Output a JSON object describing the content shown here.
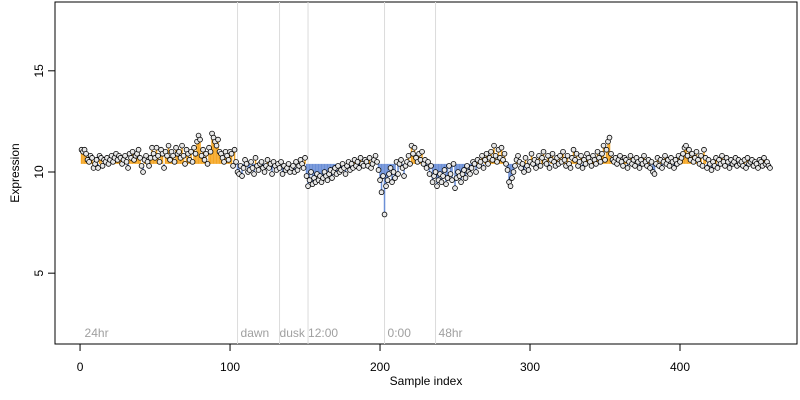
{
  "chart_data": {
    "type": "stem",
    "xlabel": "Sample index",
    "ylabel": "Expression",
    "xlim": [
      -16.7,
      478
    ],
    "ylim": [
      1.5,
      18.4
    ],
    "xticks": [
      0,
      100,
      200,
      300,
      400
    ],
    "yticks": [
      5,
      10,
      15
    ],
    "baseline": 10.4,
    "above_color": "#f5a623",
    "below_color": "#6b8fd6",
    "point_fill": "#e8e8e8",
    "vlines": [
      105,
      133,
      152,
      203,
      237
    ],
    "annotations": [
      {
        "x": 3,
        "text": "24hr"
      },
      {
        "x": 107,
        "text": "dawn"
      },
      {
        "x": 133,
        "text": "dusk"
      },
      {
        "x": 152,
        "text": "12:00"
      },
      {
        "x": 205,
        "text": "0:00"
      },
      {
        "x": 239,
        "text": "48hr"
      }
    ],
    "x": [
      1,
      2,
      3,
      4,
      5,
      6,
      7,
      8,
      9,
      10,
      11,
      12,
      13,
      14,
      15,
      16,
      17,
      18,
      19,
      20,
      21,
      22,
      23,
      24,
      25,
      26,
      27,
      28,
      29,
      30,
      31,
      32,
      33,
      34,
      35,
      36,
      37,
      38,
      39,
      40,
      41,
      42,
      43,
      44,
      45,
      46,
      47,
      48,
      49,
      50,
      51,
      52,
      53,
      54,
      55,
      56,
      57,
      58,
      59,
      60,
      61,
      62,
      63,
      64,
      65,
      66,
      67,
      68,
      69,
      70,
      71,
      72,
      73,
      74,
      75,
      76,
      77,
      78,
      79,
      80,
      81,
      82,
      83,
      84,
      85,
      86,
      87,
      88,
      89,
      90,
      91,
      92,
      93,
      94,
      95,
      96,
      97,
      98,
      99,
      100,
      101,
      102,
      103,
      104,
      105,
      106,
      107,
      108,
      109,
      110,
      111,
      112,
      113,
      114,
      115,
      116,
      117,
      118,
      119,
      120,
      121,
      122,
      123,
      124,
      125,
      126,
      127,
      128,
      129,
      130,
      131,
      132,
      133,
      134,
      135,
      136,
      137,
      138,
      139,
      140,
      141,
      142,
      143,
      144,
      145,
      146,
      147,
      148,
      149,
      150,
      151,
      152,
      153,
      154,
      155,
      156,
      157,
      158,
      159,
      160,
      161,
      162,
      163,
      164,
      165,
      166,
      167,
      168,
      169,
      170,
      171,
      172,
      173,
      174,
      175,
      176,
      177,
      178,
      179,
      180,
      181,
      182,
      183,
      184,
      185,
      186,
      187,
      188,
      189,
      190,
      191,
      192,
      193,
      194,
      195,
      196,
      197,
      198,
      199,
      200,
      201,
      202,
      203,
      204,
      205,
      206,
      207,
      208,
      209,
      210,
      211,
      212,
      213,
      214,
      215,
      216,
      217,
      218,
      219,
      220,
      221,
      222,
      223,
      224,
      225,
      226,
      227,
      228,
      229,
      230,
      231,
      232,
      233,
      234,
      235,
      236,
      237,
      238,
      239,
      240,
      241,
      242,
      243,
      244,
      245,
      246,
      247,
      248,
      249,
      250,
      251,
      252,
      253,
      254,
      255,
      256,
      257,
      258,
      259,
      260,
      261,
      262,
      263,
      264,
      265,
      266,
      267,
      268,
      269,
      270,
      271,
      272,
      273,
      274,
      275,
      276,
      277,
      278,
      279,
      280,
      281,
      282,
      283,
      284,
      285,
      286,
      287,
      288,
      289,
      290,
      291,
      292,
      293,
      294,
      295,
      296,
      297,
      298,
      299,
      300,
      301,
      302,
      303,
      304,
      305,
      306,
      307,
      308,
      309,
      310,
      311,
      312,
      313,
      314,
      315,
      316,
      317,
      318,
      319,
      320,
      321,
      322,
      323,
      324,
      325,
      326,
      327,
      328,
      329,
      330,
      331,
      332,
      333,
      334,
      335,
      336,
      337,
      338,
      339,
      340,
      341,
      342,
      343,
      344,
      345,
      346,
      347,
      348,
      349,
      350,
      351,
      352,
      353,
      354,
      355,
      356,
      357,
      358,
      359,
      360,
      361,
      362,
      363,
      364,
      365,
      366,
      367,
      368,
      369,
      370,
      371,
      372,
      373,
      374,
      375,
      376,
      377,
      378,
      379,
      380,
      381,
      382,
      383,
      384,
      385,
      386,
      387,
      388,
      389,
      390,
      391,
      392,
      393,
      394,
      395,
      396,
      397,
      398,
      399,
      400,
      401,
      402,
      403,
      404,
      405,
      406,
      407,
      408,
      409,
      410,
      411,
      412,
      413,
      414,
      415,
      416,
      417,
      418,
      419,
      420,
      421,
      422,
      423,
      424,
      425,
      426,
      427,
      428,
      429,
      430,
      431,
      432,
      433,
      434,
      435,
      436,
      437,
      438,
      439,
      440,
      441,
      442,
      443,
      444,
      445,
      446,
      447,
      448,
      449,
      450,
      451,
      452,
      453,
      454,
      455,
      456,
      457,
      458,
      459,
      460
    ],
    "values": [
      11.1,
      11.0,
      11.1,
      10.9,
      10.6,
      10.5,
      10.8,
      10.7,
      10.2,
      10.4,
      10.6,
      10.2,
      10.8,
      10.7,
      10.3,
      10.6,
      10.5,
      10.7,
      10.4,
      10.6,
      10.8,
      10.5,
      10.7,
      10.9,
      10.6,
      10.8,
      10.7,
      10.4,
      10.6,
      10.8,
      10.5,
      10.2,
      10.9,
      10.7,
      11.0,
      10.6,
      10.8,
      10.9,
      11.1,
      10.7,
      10.3,
      10.0,
      10.6,
      10.8,
      10.5,
      10.3,
      10.7,
      11.2,
      10.9,
      10.7,
      11.2,
      10.8,
      10.5,
      11.1,
      10.9,
      10.2,
      11.0,
      10.8,
      11.3,
      10.6,
      11.0,
      10.8,
      10.5,
      11.2,
      10.9,
      11.0,
      10.7,
      11.3,
      10.8,
      10.4,
      11.1,
      10.9,
      10.6,
      11.0,
      10.5,
      11.2,
      10.9,
      11.5,
      11.8,
      11.6,
      10.8,
      11.1,
      10.6,
      10.9,
      10.4,
      11.2,
      11.0,
      11.9,
      11.7,
      11.5,
      11.3,
      11.6,
      11.0,
      10.9,
      10.7,
      10.5,
      11.0,
      10.8,
      10.6,
      11.0,
      10.9,
      10.3,
      11.1,
      10.5,
      10.0,
      9.9,
      10.3,
      9.8,
      10.2,
      10.6,
      10.4,
      10.0,
      10.1,
      10.5,
      10.2,
      9.9,
      10.7,
      10.3,
      10.1,
      10.4,
      10.5,
      10.2,
      10.0,
      10.3,
      10.6,
      10.2,
      10.4,
      9.9,
      10.5,
      10.3,
      10.1,
      10.4,
      10.2,
      10.5,
      9.9,
      10.3,
      10.1,
      10.2,
      10.4,
      10.0,
      10.2,
      10.3,
      10.0,
      10.5,
      10.1,
      10.3,
      10.6,
      10.4,
      10.2,
      10.7,
      9.8,
      9.3,
      9.6,
      10.0,
      9.4,
      9.7,
      9.5,
      9.9,
      9.6,
      9.8,
      9.5,
      9.7,
      10.0,
      9.8,
      9.6,
      9.9,
      10.1,
      9.7,
      10.0,
      10.2,
      9.9,
      10.3,
      10.0,
      10.1,
      10.4,
      10.2,
      9.9,
      10.3,
      10.5,
      10.1,
      10.4,
      10.2,
      10.6,
      10.3,
      10.5,
      10.2,
      10.7,
      10.4,
      10.3,
      10.6,
      10.5,
      10.3,
      10.7,
      10.2,
      10.4,
      10.6,
      10.8,
      10.5,
      10.1,
      9.6,
      9.0,
      9.8,
      7.9,
      9.3,
      9.6,
      9.9,
      10.2,
      9.5,
      10.0,
      9.7,
      10.5,
      9.9,
      10.4,
      10.6,
      10.2,
      9.8,
      10.3,
      10.5,
      10.8,
      10.4,
      11.3,
      10.9,
      11.2,
      10.7,
      10.5,
      10.9,
      10.6,
      11.0,
      10.4,
      10.6,
      10.2,
      10.5,
      9.9,
      10.3,
      9.5,
      9.8,
      10.0,
      9.3,
      9.6,
      9.9,
      9.5,
      9.8,
      10.1,
      9.4,
      9.7,
      10.3,
      9.9,
      9.6,
      10.4,
      9.2,
      9.7,
      10.0,
      9.8,
      9.5,
      9.9,
      10.1,
      9.7,
      10.3,
      10.0,
      9.9,
      10.2,
      10.5,
      10.4,
      10.0,
      10.6,
      10.3,
      10.5,
      10.8,
      10.2,
      10.6,
      10.9,
      10.4,
      10.7,
      11.0,
      10.6,
      11.3,
      10.8,
      10.5,
      11.1,
      10.7,
      11.2,
      10.6,
      10.9,
      10.4,
      10.1,
      9.5,
      9.3,
      9.7,
      10.0,
      10.3,
      10.6,
      10.8,
      10.5,
      10.2,
      10.4,
      10.0,
      10.7,
      10.3,
      10.1,
      10.5,
      10.9,
      10.4,
      10.6,
      10.2,
      10.5,
      10.8,
      10.3,
      10.7,
      11.0,
      10.5,
      10.4,
      10.8,
      10.2,
      10.6,
      10.9,
      10.5,
      10.3,
      10.7,
      10.4,
      10.8,
      10.5,
      11.0,
      10.6,
      10.3,
      10.8,
      10.4,
      10.2,
      10.7,
      11.1,
      10.6,
      10.9,
      10.3,
      10.5,
      10.8,
      10.2,
      10.6,
      10.4,
      10.9,
      10.7,
      10.5,
      10.3,
      10.8,
      10.6,
      10.4,
      11.0,
      10.7,
      10.5,
      10.9,
      11.3,
      10.6,
      11.1,
      11.5,
      11.7,
      10.9,
      10.6,
      10.5,
      10.7,
      10.4,
      10.6,
      10.8,
      10.5,
      10.3,
      10.7,
      10.6,
      10.2,
      10.5,
      10.8,
      10.4,
      10.6,
      10.3,
      10.7,
      10.5,
      10.2,
      10.6,
      10.4,
      10.8,
      10.5,
      10.3,
      10.6,
      10.2,
      10.5,
      10.0,
      9.9,
      10.4,
      10.7,
      10.3,
      10.6,
      10.2,
      10.5,
      10.8,
      10.4,
      10.6,
      10.3,
      10.7,
      10.5,
      10.2,
      10.6,
      10.4,
      10.8,
      10.5,
      10.7,
      10.9,
      11.2,
      11.3,
      10.8,
      11.1,
      10.6,
      10.9,
      10.5,
      10.7,
      11.0,
      10.6,
      10.4,
      10.8,
      10.3,
      11.1,
      10.7,
      10.2,
      10.6,
      10.4,
      10.1,
      10.5,
      10.3,
      10.7,
      10.2,
      10.6,
      10.4,
      10.8,
      10.5,
      10.3,
      10.7,
      10.5,
      10.2,
      10.6,
      10.4,
      10.5,
      10.7,
      10.3,
      10.6,
      10.4,
      10.5,
      10.3,
      10.6,
      10.2,
      10.7,
      10.4,
      10.5,
      10.6,
      10.3,
      10.5,
      10.4,
      10.2,
      10.6,
      10.5,
      10.3,
      10.7,
      10.4,
      10.5,
      10.3,
      10.2
    ]
  }
}
